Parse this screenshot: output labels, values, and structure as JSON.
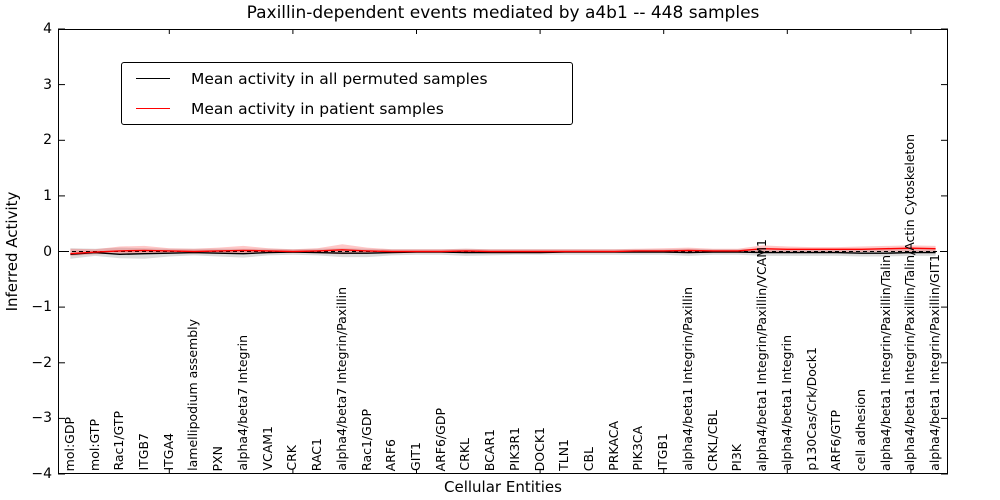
{
  "title": "Paxillin-dependent events mediated by a4b1 -- 448 samples",
  "axes": {
    "xlabel": "Cellular Entities",
    "ylabel": "Inferred Activity"
  },
  "legend": {
    "items": [
      {
        "label": "Mean activity in all permuted samples",
        "color": "#000000"
      },
      {
        "label": "Mean activity in patient samples",
        "color": "#ff0000"
      }
    ]
  },
  "chart_data": {
    "type": "line",
    "title": "Paxillin-dependent events mediated by a4b1 -- 448 samples",
    "xlabel": "Cellular Entities",
    "ylabel": "Inferred Activity",
    "ylim": [
      -4,
      4
    ],
    "yticks": [
      4,
      3,
      2,
      1,
      0,
      -1,
      -2,
      -3,
      -4
    ],
    "ytick_labels": [
      "4",
      "3",
      "2",
      "1",
      "0",
      "−1",
      "−2",
      "−3",
      "−4"
    ],
    "xtick_indices": [
      4,
      9,
      14,
      19,
      24,
      29,
      34
    ],
    "grid": false,
    "legend_position": "upper left",
    "zero_line": {
      "style": "dashed",
      "color": "#000000"
    },
    "categories": [
      "mol:GDP",
      "mol:GTP",
      "Rac1/GTP",
      "ITGB7",
      "ITGA4",
      "lamellipodium assembly",
      "PXN",
      "alpha4/beta7 Integrin",
      "VCAM1",
      "CRK",
      "RAC1",
      "alpha4/beta7 Integrin/Paxillin",
      "Rac1/GDP",
      "ARF6",
      "GIT1",
      "ARF6/GDP",
      "CRKL",
      "BCAR1",
      "PIK3R1",
      "DOCK1",
      "TLN1",
      "CBL",
      "PRKACA",
      "PIK3CA",
      "ITGB1",
      "alpha4/beta1 Integrin/Paxillin",
      "CRKL/CBL",
      "PI3K",
      "alpha4/beta1 Integrin/Paxillin/VCAM1",
      "alpha4/beta1 Integrin",
      "p130Cas/Crk/Dock1",
      "ARF6/GTP",
      "cell adhesion",
      "alpha4/beta1 Integrin/Paxillin/Talin",
      "alpha4/beta1 Integrin/Paxillin/Talin/Actin Cytoskeleton",
      "alpha4/beta1 Integrin/Paxillin/GIT1"
    ],
    "series": [
      {
        "name": "Mean activity in all permuted samples",
        "color": "#000000",
        "band_color": "#999999",
        "band_opacity": 0.35,
        "values": [
          -0.05,
          -0.02,
          -0.05,
          -0.04,
          -0.03,
          -0.02,
          -0.03,
          -0.04,
          -0.02,
          -0.01,
          -0.02,
          -0.03,
          -0.03,
          -0.02,
          -0.01,
          -0.01,
          -0.02,
          -0.02,
          -0.02,
          -0.02,
          -0.01,
          -0.01,
          -0.01,
          -0.01,
          -0.01,
          -0.02,
          -0.01,
          -0.01,
          -0.02,
          -0.02,
          -0.02,
          -0.02,
          -0.03,
          -0.03,
          -0.02,
          -0.02
        ],
        "band_high": [
          0.06,
          0.05,
          0.07,
          0.06,
          0.05,
          0.05,
          0.05,
          0.05,
          0.05,
          0.04,
          0.05,
          0.06,
          0.05,
          0.04,
          0.04,
          0.04,
          0.05,
          0.04,
          0.04,
          0.04,
          0.04,
          0.04,
          0.04,
          0.04,
          0.04,
          0.05,
          0.04,
          0.04,
          0.05,
          0.05,
          0.05,
          0.05,
          0.05,
          0.05,
          0.05,
          0.05
        ],
        "band_low": [
          -0.13,
          -0.08,
          -0.12,
          -0.13,
          -0.09,
          -0.07,
          -0.09,
          -0.11,
          -0.07,
          -0.06,
          -0.07,
          -0.1,
          -0.1,
          -0.07,
          -0.06,
          -0.06,
          -0.08,
          -0.07,
          -0.06,
          -0.06,
          -0.06,
          -0.06,
          -0.06,
          -0.06,
          -0.06,
          -0.08,
          -0.06,
          -0.06,
          -0.08,
          -0.08,
          -0.08,
          -0.08,
          -0.09,
          -0.09,
          -0.08,
          -0.08
        ]
      },
      {
        "name": "Mean activity in patient samples",
        "color": "#ff0000",
        "band_color": "#ff4444",
        "band_opacity": 0.3,
        "values": [
          -0.04,
          -0.01,
          0.01,
          0.02,
          0.01,
          0.0,
          0.01,
          0.02,
          0.01,
          0.0,
          0.01,
          0.03,
          0.01,
          0.0,
          0.0,
          0.0,
          0.01,
          0.0,
          0.0,
          0.0,
          0.0,
          0.0,
          0.0,
          0.01,
          0.01,
          0.02,
          0.01,
          0.01,
          0.05,
          0.04,
          0.04,
          0.04,
          0.04,
          0.05,
          0.06,
          0.05
        ],
        "band_high": [
          0.05,
          0.04,
          0.09,
          0.1,
          0.06,
          0.05,
          0.07,
          0.1,
          0.06,
          0.04,
          0.06,
          0.13,
          0.07,
          0.04,
          0.04,
          0.04,
          0.05,
          0.04,
          0.04,
          0.04,
          0.04,
          0.04,
          0.04,
          0.05,
          0.06,
          0.07,
          0.05,
          0.05,
          0.11,
          0.09,
          0.08,
          0.08,
          0.09,
          0.1,
          0.11,
          0.1
        ],
        "band_low": [
          -0.08,
          -0.05,
          -0.04,
          -0.04,
          -0.03,
          -0.03,
          -0.03,
          -0.04,
          -0.03,
          -0.02,
          -0.03,
          -0.05,
          -0.04,
          -0.02,
          -0.02,
          -0.02,
          -0.03,
          -0.02,
          -0.02,
          -0.02,
          -0.02,
          -0.02,
          -0.02,
          -0.02,
          -0.02,
          -0.03,
          -0.02,
          -0.02,
          -0.02,
          -0.01,
          -0.01,
          -0.01,
          -0.01,
          0.0,
          0.0,
          0.0
        ]
      }
    ]
  }
}
